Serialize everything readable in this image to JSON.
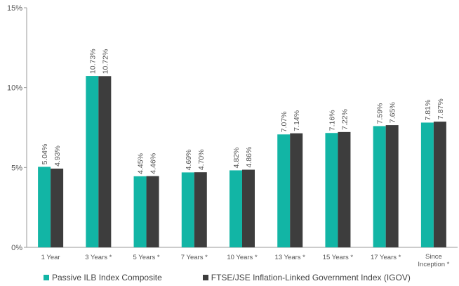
{
  "chart_data": {
    "type": "bar",
    "title": "",
    "xlabel": "",
    "ylabel": "",
    "ylim": [
      0,
      15
    ],
    "yticks": [
      "0%",
      "5%",
      "10%",
      "15%"
    ],
    "categories": [
      [
        "1 Year"
      ],
      [
        "3 Years *"
      ],
      [
        "5 Years *"
      ],
      [
        "7 Years *"
      ],
      [
        "10 Years *"
      ],
      [
        "13 Years *"
      ],
      [
        "15 Years *"
      ],
      [
        "17 Years *"
      ],
      [
        "Since",
        "Inception *"
      ]
    ],
    "series": [
      {
        "name": "Passive ILB Index Composite",
        "color": "#12b5a5",
        "values": [
          5.04,
          10.73,
          4.45,
          4.69,
          4.82,
          7.07,
          7.16,
          7.59,
          7.81
        ],
        "labels": [
          "5.04%",
          "10.73%",
          "4.45%",
          "4.69%",
          "4.82%",
          "7.07%",
          "7.16%",
          "7.59%",
          "7.81%"
        ]
      },
      {
        "name": "FTSE/JSE Inflation-Linked Government Index (IGOV)",
        "color": "#3d3d3d",
        "values": [
          4.93,
          10.72,
          4.46,
          4.7,
          4.86,
          7.14,
          7.22,
          7.65,
          7.87
        ],
        "labels": [
          "4.93%",
          "10.72%",
          "4.46%",
          "4.70%",
          "4.86%",
          "7.14%",
          "7.22%",
          "7.65%",
          "7.87%"
        ]
      }
    ],
    "grid": false,
    "legend_position": "bottom-left"
  }
}
